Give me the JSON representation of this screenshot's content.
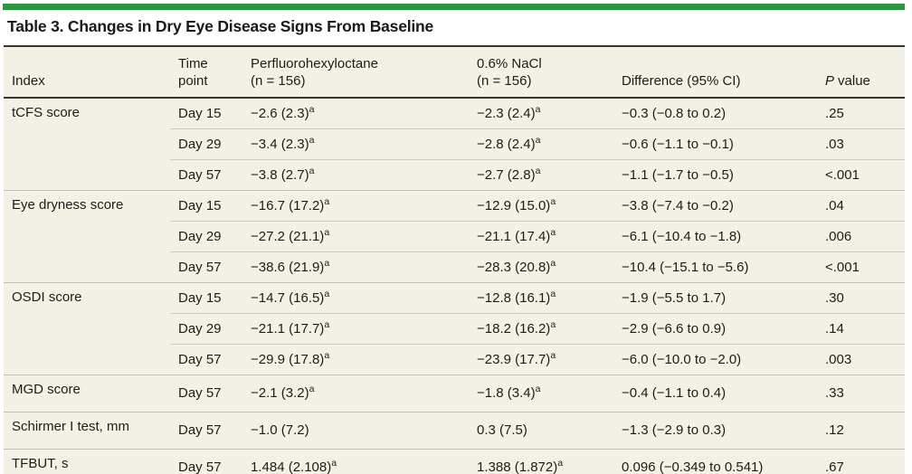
{
  "title": "Table 3. Changes in Dry Eye Disease Signs From Baseline",
  "colors": {
    "accent_bar_green": "#2E9643",
    "table_background": "#F3F1E6",
    "heavy_rule": "#37352D",
    "group_rule": "#C2C0B6",
    "row_rule": "#CDCBC1",
    "text": "#1C1C1A"
  },
  "header": {
    "index": "Index",
    "time_line1": "Time",
    "time_line2": "point",
    "drug_line1": "Perfluorohexyloctane",
    "drug_line2": "(n = 156)",
    "control_line1": "0.6% NaCl",
    "control_line2": "(n = 156)",
    "difference": "Difference (95% CI)",
    "pvalue_italic": "P",
    "pvalue_rest": "value"
  },
  "groups": [
    {
      "index": "tCFS score",
      "rows": [
        {
          "time": "Day 15",
          "drug": "−2.6 (2.3)",
          "drug_sup": "a",
          "control": "−2.3 (2.4)",
          "control_sup": "a",
          "difference": "−0.3 (−0.8 to 0.2)",
          "p": ".25"
        },
        {
          "time": "Day 29",
          "drug": "−3.4 (2.3)",
          "drug_sup": "a",
          "control": "−2.8 (2.4)",
          "control_sup": "a",
          "difference": "−0.6 (−1.1 to −0.1)",
          "p": ".03"
        },
        {
          "time": "Day 57",
          "drug": "−3.8 (2.7)",
          "drug_sup": "a",
          "control": "−2.7 (2.8)",
          "control_sup": "a",
          "difference": "−1.1 (−1.7 to −0.5)",
          "p": "<.001"
        }
      ]
    },
    {
      "index": "Eye dryness score",
      "rows": [
        {
          "time": "Day 15",
          "drug": "−16.7 (17.2)",
          "drug_sup": "a",
          "control": "−12.9 (15.0)",
          "control_sup": "a",
          "difference": "−3.8 (−7.4 to −0.2)",
          "p": ".04"
        },
        {
          "time": "Day 29",
          "drug": "−27.2 (21.1)",
          "drug_sup": "a",
          "control": "−21.1 (17.4)",
          "control_sup": "a",
          "difference": "−6.1 (−10.4 to −1.8)",
          "p": ".006"
        },
        {
          "time": "Day 57",
          "drug": "−38.6 (21.9)",
          "drug_sup": "a",
          "control": "−28.3 (20.8)",
          "control_sup": "a",
          "difference": "−10.4 (−15.1 to −5.6)",
          "p": "<.001"
        }
      ]
    },
    {
      "index": "OSDI score",
      "rows": [
        {
          "time": "Day 15",
          "drug": "−14.7 (16.5)",
          "drug_sup": "a",
          "control": "−12.8 (16.1)",
          "control_sup": "a",
          "difference": "−1.9 (−5.5 to 1.7)",
          "p": ".30"
        },
        {
          "time": "Day 29",
          "drug": "−21.1 (17.7)",
          "drug_sup": "a",
          "control": "−18.2 (16.2)",
          "control_sup": "a",
          "difference": "−2.9 (−6.6 to 0.9)",
          "p": ".14"
        },
        {
          "time": "Day 57",
          "drug": "−29.9 (17.8)",
          "drug_sup": "a",
          "control": "−23.9 (17.7)",
          "control_sup": "a",
          "difference": "−6.0 (−10.0 to −2.0)",
          "p": ".003"
        }
      ]
    },
    {
      "index": "MGD score",
      "rows": [
        {
          "time": "Day 57",
          "drug": "−2.1 (3.2)",
          "drug_sup": "a",
          "control": "−1.8 (3.4)",
          "control_sup": "a",
          "difference": "−0.4 (−1.1 to 0.4)",
          "p": ".33"
        }
      ]
    },
    {
      "index": "Schirmer I test, mm",
      "rows": [
        {
          "time": "Day 57",
          "drug": "−1.0 (7.2)",
          "drug_sup": "",
          "control": "0.3 (7.5)",
          "control_sup": "",
          "difference": "−1.3 (−2.9 to 0.3)",
          "p": ".12"
        }
      ]
    },
    {
      "index": "TFBUT, s",
      "rows": [
        {
          "time": "Day 57",
          "drug": "1.484 (2.108)",
          "drug_sup": "a",
          "control": "1.388 (1.872)",
          "control_sup": "a",
          "difference": "0.096 (−0.349 to 0.541)",
          "p": ".67"
        }
      ]
    }
  ]
}
